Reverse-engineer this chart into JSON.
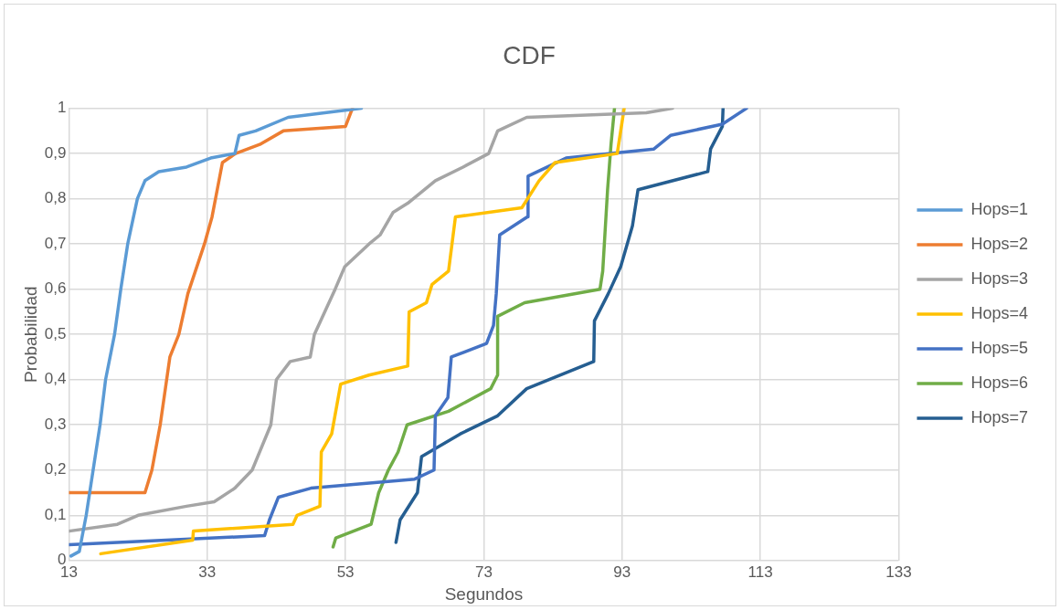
{
  "chart_data": {
    "type": "line",
    "title": "CDF",
    "xlabel": "Segundos",
    "ylabel": "Probabilidad",
    "xlim": [
      13,
      133
    ],
    "xticks": [
      13,
      33,
      53,
      73,
      93,
      113,
      133
    ],
    "ylim": [
      0,
      1
    ],
    "yticks": [
      0,
      {
        "value": 0.1,
        "label": "0,1"
      },
      {
        "value": 0.2,
        "label": "0,2"
      },
      {
        "value": 0.3,
        "label": "0,3"
      },
      {
        "value": 0.4,
        "label": "0,4"
      },
      {
        "value": 0.5,
        "label": "0,5"
      },
      {
        "value": 0.6,
        "label": "0,6"
      },
      {
        "value": 0.7,
        "label": "0,7"
      },
      {
        "value": 0.8,
        "label": "0,8"
      },
      {
        "value": 0.9,
        "label": "0,9"
      },
      1
    ],
    "grid": true,
    "legend": "right",
    "marker": "none",
    "line_style": "solid",
    "series": [
      {
        "name": "Hops=1",
        "color": "#5b9bd5",
        "x": [
          13.3,
          14.5,
          15.5,
          16.5,
          17.5,
          18.3,
          19.6,
          20.5,
          21.5,
          22.9,
          24,
          26,
          30,
          33.5,
          37,
          37.6,
          40,
          44.7,
          50,
          55.3
        ],
        "values": [
          0.01,
          0.02,
          0.1,
          0.2,
          0.3,
          0.4,
          0.5,
          0.6,
          0.7,
          0.8,
          0.84,
          0.86,
          0.87,
          0.89,
          0.9,
          0.94,
          0.95,
          0.98,
          0.99,
          1.0
        ]
      },
      {
        "name": "Hops=2",
        "color": "#ed7d31",
        "x": [
          13,
          24,
          25,
          26.2,
          27.6,
          28.9,
          30.2,
          32.6,
          33.7,
          35.2,
          37.1,
          40.6,
          44,
          53,
          54
        ],
        "values": [
          0.15,
          0.15,
          0.2,
          0.3,
          0.45,
          0.5,
          0.59,
          0.7,
          0.76,
          0.88,
          0.9,
          0.92,
          0.95,
          0.96,
          1.0
        ]
      },
      {
        "name": "Hops=3",
        "color": "#a5a5a5",
        "x": [
          13,
          20,
          23,
          30,
          34,
          37,
          39.5,
          42.2,
          43,
          45,
          47.9,
          48.5,
          50,
          51.5,
          52.9,
          56.4,
          58,
          59.9,
          62,
          66,
          70,
          73.7,
          75,
          79.2,
          96.5,
          100.3
        ],
        "values": [
          0.065,
          0.08,
          0.1,
          0.12,
          0.13,
          0.16,
          0.2,
          0.3,
          0.4,
          0.44,
          0.45,
          0.5,
          0.55,
          0.6,
          0.65,
          0.7,
          0.72,
          0.77,
          0.79,
          0.84,
          0.87,
          0.9,
          0.95,
          0.98,
          0.99,
          1.0
        ]
      },
      {
        "name": "Hops=4",
        "color": "#ffc000",
        "x": [
          17.6,
          30.9,
          31,
          45.4,
          46,
          49.3,
          49.5,
          51,
          52.3,
          56.4,
          62,
          62.2,
          64.7,
          65.5,
          67.9,
          68.9,
          78.5,
          81,
          83.3,
          92.3,
          93.3
        ],
        "values": [
          0.015,
          0.045,
          0.065,
          0.08,
          0.1,
          0.12,
          0.24,
          0.28,
          0.39,
          0.41,
          0.43,
          0.55,
          0.57,
          0.61,
          0.64,
          0.76,
          0.78,
          0.84,
          0.88,
          0.9,
          1.0
        ]
      },
      {
        "name": "Hops=5",
        "color": "#4472c4",
        "x": [
          13,
          41.3,
          42,
          43.3,
          48,
          63,
          65.8,
          66,
          67.8,
          68.3,
          73.4,
          74.4,
          74.8,
          75.3,
          79.3,
          79.4,
          84.9,
          97.6,
          100,
          107.5,
          111
        ],
        "values": [
          0.035,
          0.055,
          0.09,
          0.14,
          0.16,
          0.18,
          0.2,
          0.32,
          0.36,
          0.45,
          0.48,
          0.52,
          0.59,
          0.72,
          0.76,
          0.85,
          0.89,
          0.91,
          0.94,
          0.965,
          1.0
        ]
      },
      {
        "name": "Hops=6",
        "color": "#70ad47",
        "x": [
          51.2,
          51.6,
          56.7,
          57.8,
          59.2,
          60.6,
          61.9,
          67.9,
          74,
          75,
          75,
          78.9,
          89.8,
          90.2,
          90.9,
          91.4,
          91.9
        ],
        "values": [
          0.03,
          0.05,
          0.08,
          0.15,
          0.2,
          0.24,
          0.3,
          0.33,
          0.38,
          0.41,
          0.54,
          0.57,
          0.6,
          0.64,
          0.82,
          0.92,
          1.0
        ]
      },
      {
        "name": "Hops=7",
        "color": "#255e91",
        "x": [
          60.3,
          60.9,
          63.4,
          64,
          69.6,
          75,
          79.2,
          88.9,
          89,
          91,
          92.8,
          94.5,
          95.3,
          105.4,
          105.8,
          107.5,
          107.6
        ],
        "values": [
          0.04,
          0.09,
          0.15,
          0.23,
          0.28,
          0.32,
          0.38,
          0.44,
          0.53,
          0.59,
          0.65,
          0.74,
          0.82,
          0.86,
          0.91,
          0.96,
          1.0
        ]
      }
    ]
  }
}
